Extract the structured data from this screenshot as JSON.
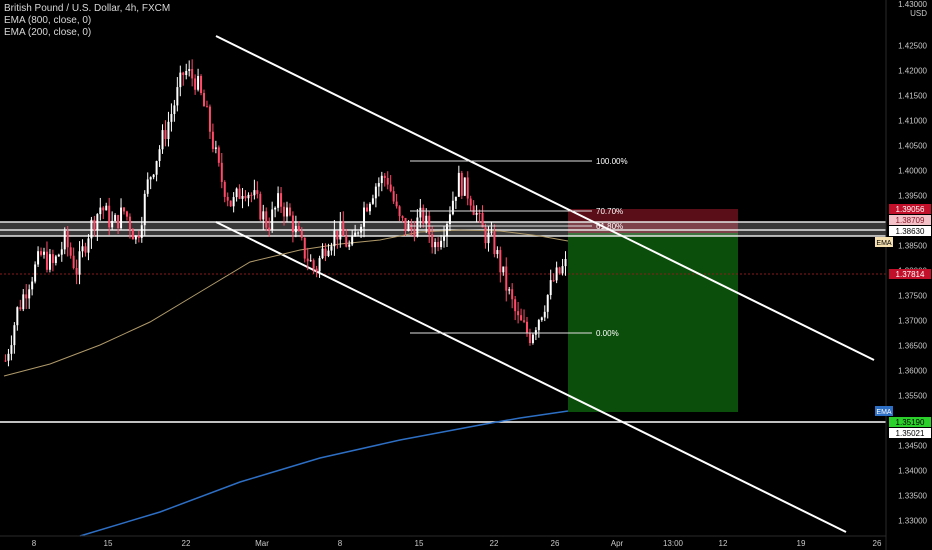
{
  "legend": {
    "symbol": "British Pound / U.S. Dollar, 4h, FXCM",
    "ema_fast": "EMA (800, close, 0)",
    "ema_slow": "EMA (200, close, 0)"
  },
  "axis": {
    "currency": "USD",
    "top_value": "1.43000",
    "y_ticks": [
      "1.42500",
      "1.42000",
      "1.41500",
      "1.41000",
      "1.40500",
      "1.40000",
      "1.39500",
      "1.39000",
      "1.38500",
      "1.38000",
      "1.37500",
      "1.37000",
      "1.36500",
      "1.36000",
      "1.35500",
      "1.35000",
      "1.34500",
      "1.34000",
      "1.33500",
      "1.33000"
    ],
    "x_ticks": [
      "8",
      "15",
      "22",
      "Mar",
      "8",
      "15",
      "22",
      "26",
      "Apr",
      "13:00",
      "12",
      "19",
      "26"
    ]
  },
  "price_tags": {
    "stop": "1.39056",
    "entry_a": "1.38709",
    "entry_b": "1.38630",
    "ema_label": "EMA",
    "last": "1.37814",
    "ema200_label": "EMA",
    "target": "1.35190",
    "ema200_value": "1.35021"
  },
  "fib": {
    "level_100": "100.00%",
    "level_707": "70.70%",
    "level_618": "61.80%",
    "level_0": "0.00%"
  },
  "chart_data": {
    "type": "candlestick",
    "ylim": [
      1.3285,
      1.4285
    ],
    "y_ticks": [
      1.425,
      1.42,
      1.415,
      1.41,
      1.405,
      1.4,
      1.395,
      1.39,
      1.385,
      1.38,
      1.375,
      1.37,
      1.365,
      1.36,
      1.355,
      1.35,
      1.345,
      1.34,
      1.335,
      1.33
    ],
    "price_path": [
      1.362,
      1.372,
      1.378,
      1.383,
      1.381,
      1.386,
      1.38,
      1.388,
      1.393,
      1.389,
      1.392,
      1.386,
      1.398,
      1.405,
      1.412,
      1.42,
      1.418,
      1.41,
      1.399,
      1.393,
      1.397,
      1.394,
      1.389,
      1.394,
      1.39,
      1.384,
      1.38,
      1.386,
      1.388,
      1.384,
      1.392,
      1.397,
      1.399,
      1.39,
      1.388,
      1.391,
      1.385,
      1.39,
      1.398,
      1.395,
      1.388,
      1.385,
      1.377,
      1.37,
      1.367,
      1.372,
      1.378,
      1.381
    ],
    "resistance_zone": [
      1.3863,
      1.3906
    ],
    "support_level": 1.3519,
    "last_price": 1.37814,
    "fib_levels": [
      {
        "label": "100.00%",
        "price": 1.4002
      },
      {
        "label": "70.70%",
        "price": 1.3908
      },
      {
        "label": "61.80%",
        "price": 1.388
      },
      {
        "label": "0.00%",
        "price": 1.3667
      }
    ],
    "position": {
      "entry": 1.3863,
      "stop": 1.3906,
      "target": 1.3519
    },
    "ema_800": {
      "from": 1.3492,
      "to": 1.3519,
      "label": "EMA"
    },
    "ema_200": {
      "from": 1.3617,
      "to": 1.384,
      "label": "EMA"
    }
  },
  "colors": {
    "background": "#000000",
    "candle_up": "#ffffff",
    "candle_down": "#ff4a68",
    "ema_fast": "#2d6fc4",
    "ema_slow": "#b09a6a",
    "channel": "#ffffff",
    "profit_zone": "#0b4d0b",
    "loss_zone": "#5a0e18",
    "last_price_line": "#8b1a1a"
  }
}
